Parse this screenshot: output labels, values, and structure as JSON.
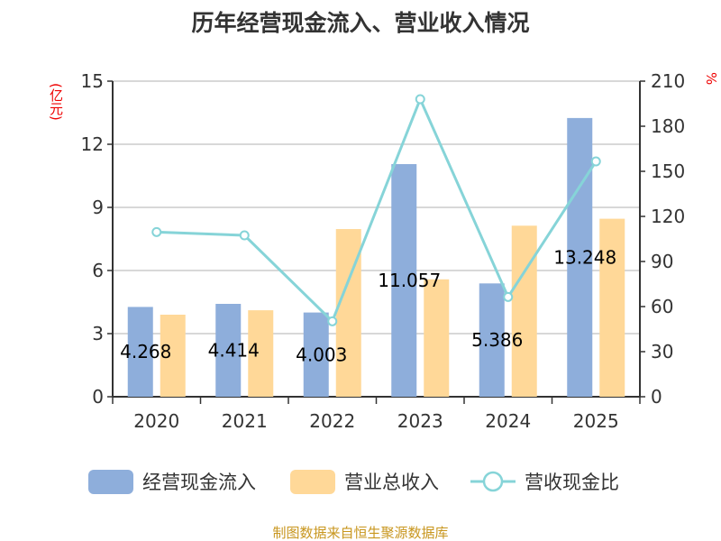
{
  "title": "历年经营现金流入、营业收入情况",
  "source": "制图数据来自恒生聚源数据库",
  "chart_data": {
    "type": "bar",
    "title": "历年经营现金流入、营业收入情况",
    "categories": [
      "2020",
      "2021",
      "2022",
      "2023",
      "2024",
      "2025"
    ],
    "y_left": {
      "label": "(亿元)",
      "range": [
        0,
        15
      ],
      "ticks": [
        0,
        3,
        6,
        9,
        12,
        15
      ]
    },
    "y_right": {
      "label": "%",
      "range": [
        0,
        210
      ],
      "ticks": [
        0,
        30,
        60,
        90,
        120,
        150,
        180,
        210
      ]
    },
    "grid": true,
    "legend_placement": "bottom",
    "series": [
      {
        "name": "经营现金流入",
        "type": "bar",
        "axis": "left",
        "color": "#8eaedb",
        "values": [
          4.268,
          4.414,
          4.003,
          11.057,
          5.386,
          13.248
        ],
        "labels": [
          "4.268",
          "4.414",
          "4.003",
          "11.057",
          "5.386",
          "13.248"
        ]
      },
      {
        "name": "营业总收入",
        "type": "bar",
        "axis": "left",
        "color": "#ffd898",
        "values": [
          3.9,
          4.11,
          7.97,
          5.58,
          8.13,
          8.46
        ]
      },
      {
        "name": "营收现金比",
        "type": "line",
        "axis": "right",
        "color": "#86d4d8",
        "values": [
          109.6,
          107.4,
          50.2,
          198,
          66.4,
          156.6
        ]
      }
    ]
  }
}
